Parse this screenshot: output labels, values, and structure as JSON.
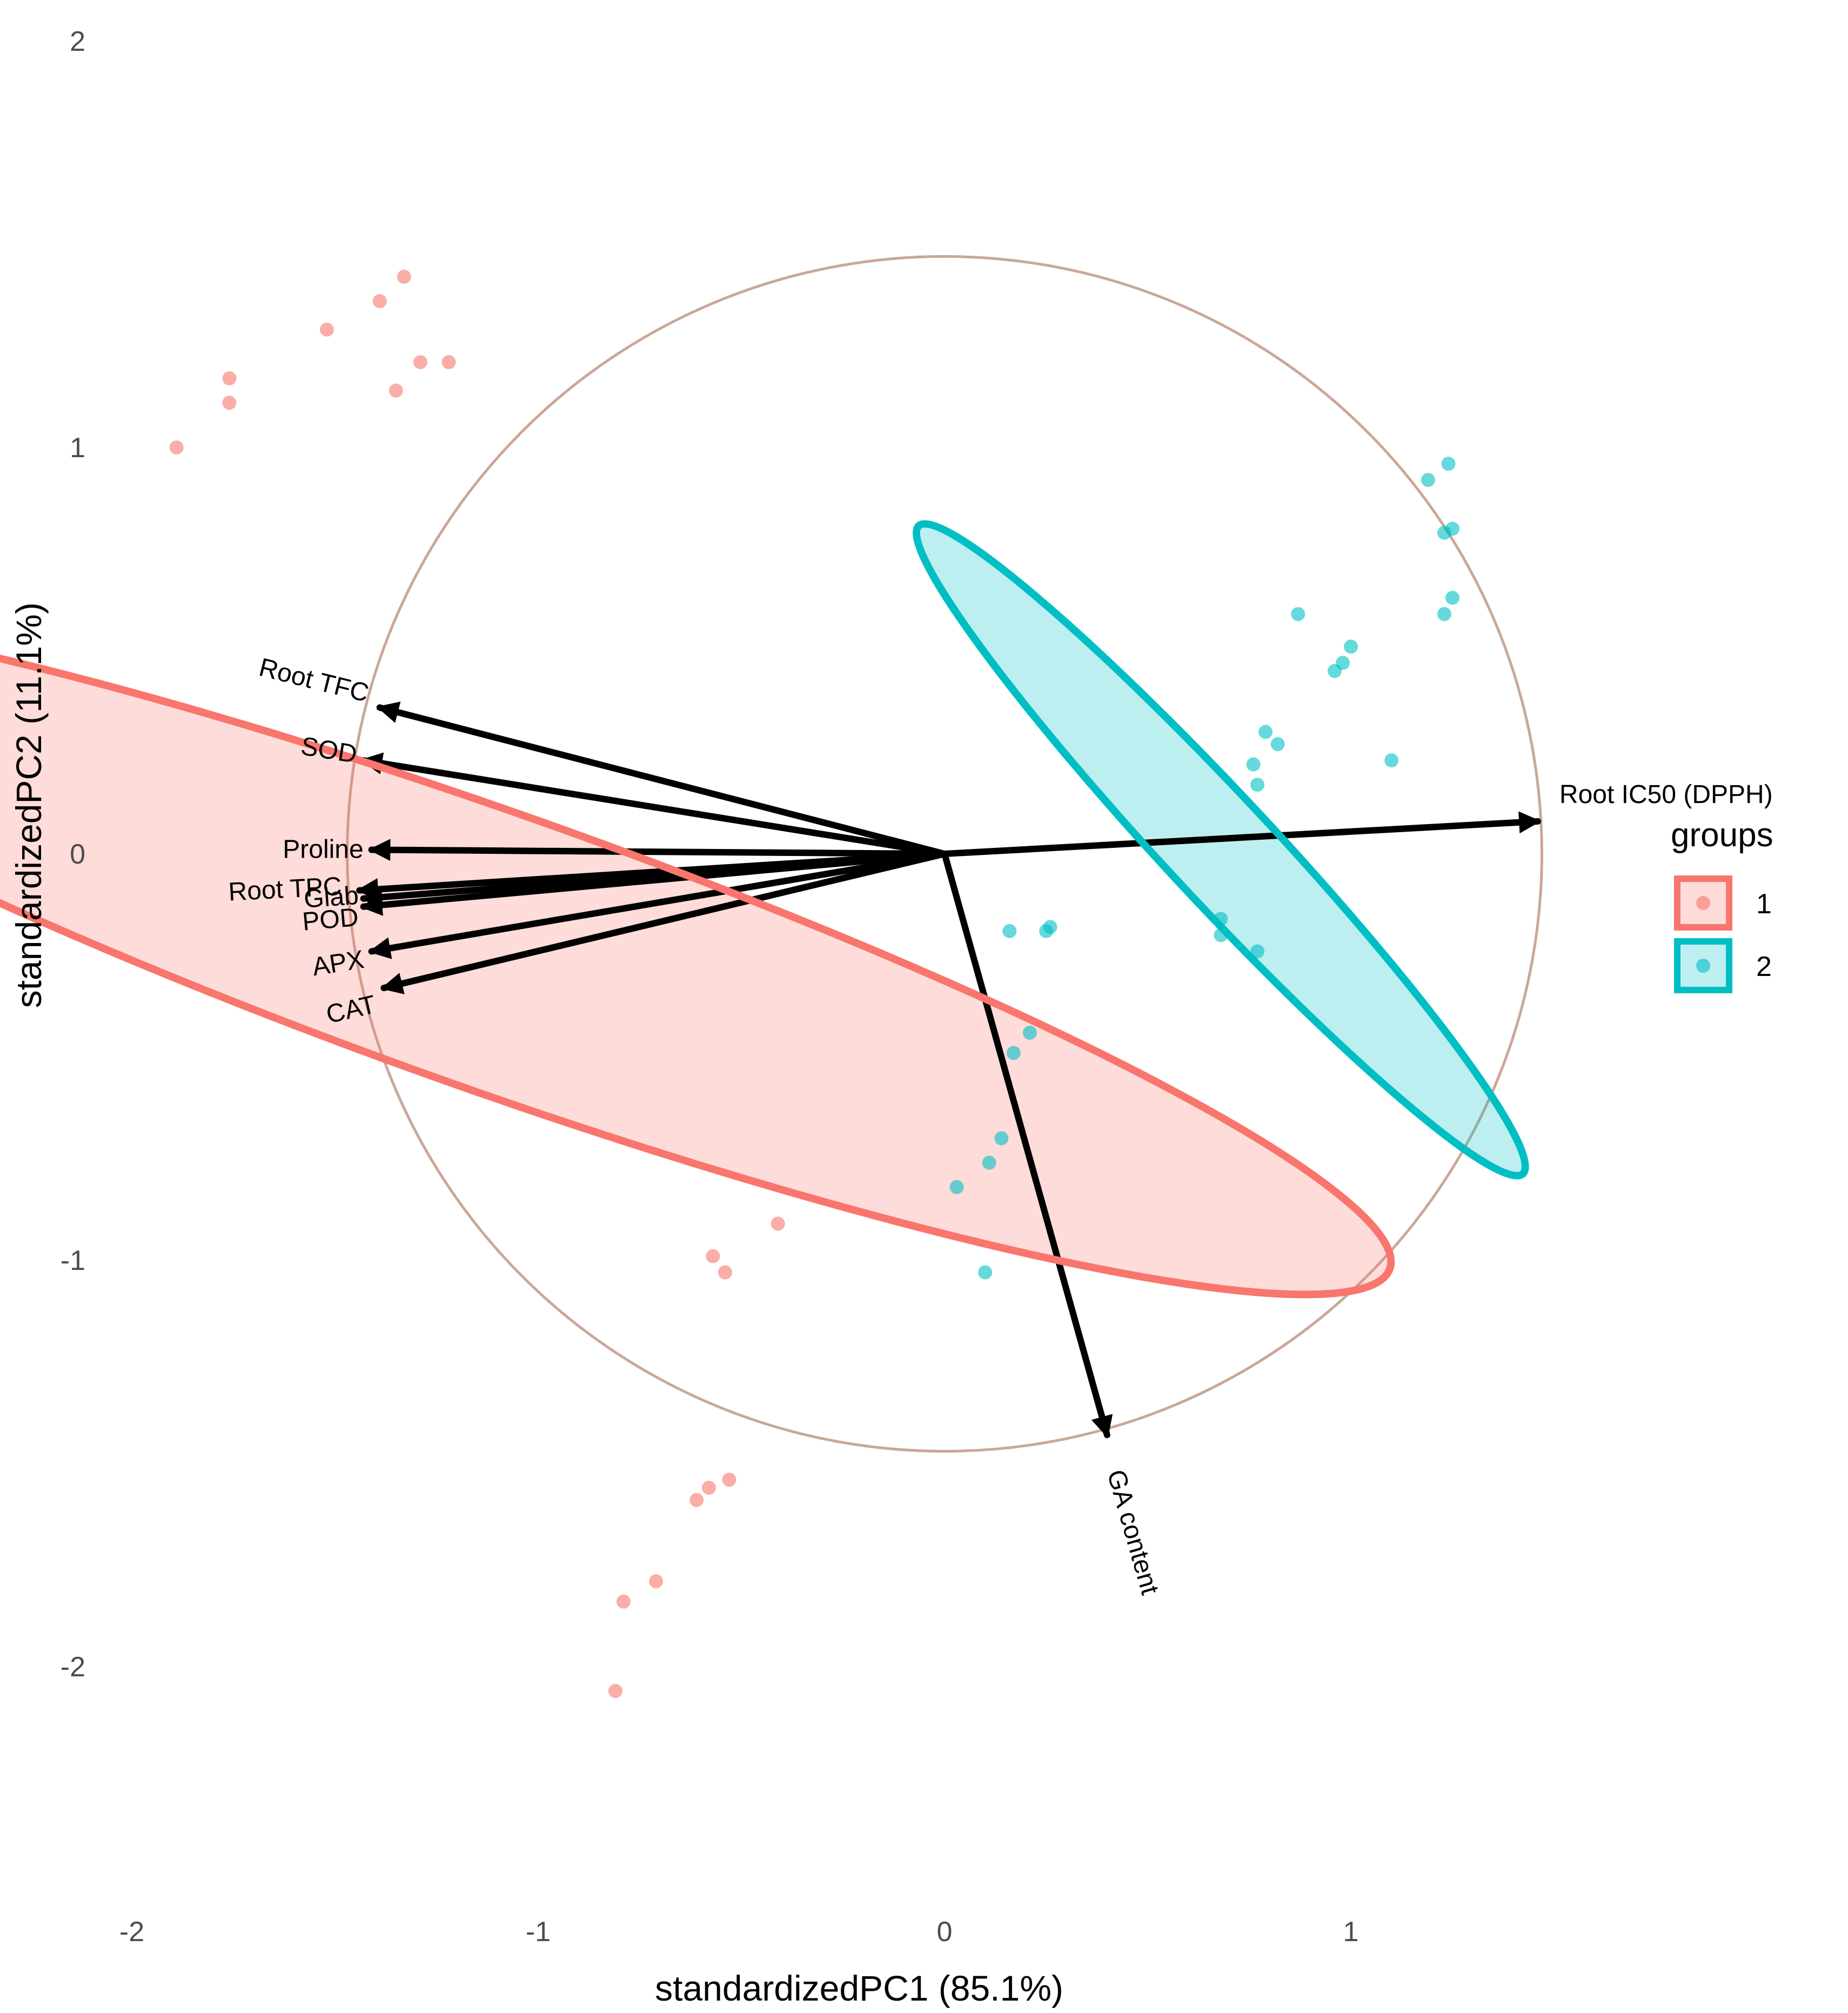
{
  "chart_data": {
    "type": "scatter",
    "subtype": "pca-biplot",
    "xlabel": "standardizedPC1 (85.1%)",
    "ylabel": "standardizedPC2 (11.1%)",
    "xlim": [
      -2.0,
      2.2
    ],
    "ylim": [
      -2.5,
      2.1
    ],
    "x_ticks": [
      -2,
      -1,
      0,
      1
    ],
    "y_ticks": [
      -2,
      -1,
      0,
      1,
      2
    ],
    "x_tick_labels": [
      "-2",
      "-1",
      "0",
      "1"
    ],
    "y_tick_labels": [
      "-2",
      "-1",
      "0",
      "1",
      "2"
    ],
    "grid": false,
    "legend": {
      "title": "groups",
      "position": "right",
      "entries": [
        "1",
        "2"
      ]
    },
    "colors": {
      "group1": "#F8766D",
      "group2": "#00BFC4",
      "circle": "#C9A897",
      "arrow": "#000000"
    },
    "correlation_circle": {
      "center": [
        0,
        0
      ],
      "radius": 1.47
    },
    "series": [
      {
        "name": "1",
        "color": "#F8766D",
        "points": [
          [
            -1.33,
            1.42
          ],
          [
            -1.39,
            1.36
          ],
          [
            -1.52,
            1.29
          ],
          [
            -1.29,
            1.21
          ],
          [
            -1.22,
            1.21
          ],
          [
            -1.35,
            1.14
          ],
          [
            -1.76,
            1.17
          ],
          [
            -1.76,
            1.11
          ],
          [
            -1.89,
            1.0
          ],
          [
            -0.41,
            -0.91
          ],
          [
            -0.57,
            -0.99
          ],
          [
            -0.54,
            -1.03
          ],
          [
            -0.53,
            -1.54
          ],
          [
            -0.58,
            -1.56
          ],
          [
            -0.61,
            -1.59
          ],
          [
            -0.71,
            -1.79
          ],
          [
            -0.79,
            -1.84
          ],
          [
            -0.81,
            -2.06
          ]
        ],
        "ellipse": {
          "center": [
            -1.11,
            -0.24
          ],
          "semi_axes": [
            0.34,
            2.34
          ],
          "angle_deg": -70.5
        }
      },
      {
        "name": "2",
        "color": "#00BFC4",
        "points": [
          [
            1.24,
            0.96
          ],
          [
            1.19,
            0.92
          ],
          [
            1.25,
            0.8
          ],
          [
            1.23,
            0.79
          ],
          [
            1.25,
            0.63
          ],
          [
            1.23,
            0.59
          ],
          [
            0.87,
            0.59
          ],
          [
            1.0,
            0.51
          ],
          [
            0.98,
            0.47
          ],
          [
            0.96,
            0.45
          ],
          [
            1.1,
            0.23
          ],
          [
            0.79,
            0.3
          ],
          [
            0.82,
            0.27
          ],
          [
            0.76,
            0.22
          ],
          [
            0.77,
            0.17
          ],
          [
            0.68,
            -0.16
          ],
          [
            0.68,
            -0.2
          ],
          [
            0.77,
            -0.24
          ],
          [
            0.16,
            -0.19
          ],
          [
            0.25,
            -0.19
          ],
          [
            0.26,
            -0.18
          ],
          [
            0.21,
            -0.44
          ],
          [
            0.17,
            -0.49
          ],
          [
            0.14,
            -0.7
          ],
          [
            0.11,
            -0.76
          ],
          [
            0.03,
            -0.82
          ],
          [
            0.1,
            -1.03
          ]
        ],
        "ellipse": {
          "center": [
            0.68,
            0.01
          ],
          "semi_axes": [
            0.13,
            1.09
          ],
          "angle_deg": -43
        }
      }
    ],
    "loadings": [
      {
        "label": "Root TFC",
        "x": -1.39,
        "y": 0.36
      },
      {
        "label": "SOD",
        "x": -1.43,
        "y": 0.23
      },
      {
        "label": "Proline",
        "x": -1.41,
        "y": 0.01
      },
      {
        "label": "Root TPC",
        "x": -1.44,
        "y": -0.09
      },
      {
        "label": "Glab",
        "x": -1.43,
        "y": -0.11
      },
      {
        "label": "POD",
        "x": -1.43,
        "y": -0.13
      },
      {
        "label": "APX",
        "x": -1.41,
        "y": -0.24
      },
      {
        "label": "CAT",
        "x": -1.38,
        "y": -0.33
      },
      {
        "label": "Root IC50 (DPPH)",
        "x": 1.46,
        "y": 0.08
      },
      {
        "label": "GA content",
        "x": 0.4,
        "y": -1.43
      }
    ]
  }
}
